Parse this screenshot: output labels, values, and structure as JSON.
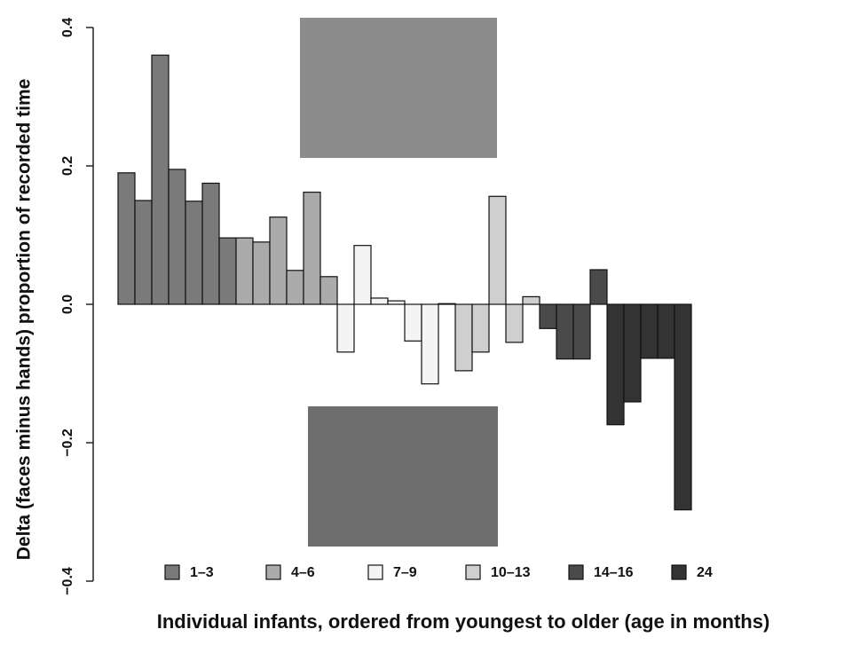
{
  "chart_data": {
    "type": "bar",
    "y_label": "Delta (faces minus hands) proportion of recorded time",
    "x_label": "Individual infants, ordered from youngest to older (age in months)",
    "ylim": [
      -0.4,
      0.4
    ],
    "yticks": [
      {
        "value": -0.4,
        "label": "−0.4"
      },
      {
        "value": -0.2,
        "label": "−0.2"
      },
      {
        "value": 0,
        "label": "0.0"
      },
      0.2,
      0.4
    ],
    "series": [
      {
        "name": "1–3",
        "color": "#7a7a7a",
        "values": [
          0.19,
          0.15,
          0.36,
          0.195,
          0.149,
          0.175,
          0.096
        ]
      },
      {
        "name": "4–6",
        "color": "#ababab",
        "values": [
          0.096,
          0.09,
          0.126,
          0.049,
          0.162,
          0.04
        ]
      },
      {
        "name": "7–9",
        "color": "#f4f4f4",
        "values": [
          -0.069,
          0.085,
          0.009,
          0.005,
          -0.053,
          -0.115,
          0.001
        ]
      },
      {
        "name": "10–13",
        "color": "#cfcfcf",
        "values": [
          -0.096,
          -0.069,
          0.156,
          -0.055,
          0.011
        ]
      },
      {
        "name": "14–16",
        "color": "#4a4a4a",
        "values": [
          -0.035,
          -0.079,
          -0.079,
          0.05
        ]
      },
      {
        "name": "24",
        "color": "#333333",
        "values": [
          -0.174,
          -0.141,
          -0.078,
          -0.078,
          -0.297
        ]
      }
    ]
  }
}
